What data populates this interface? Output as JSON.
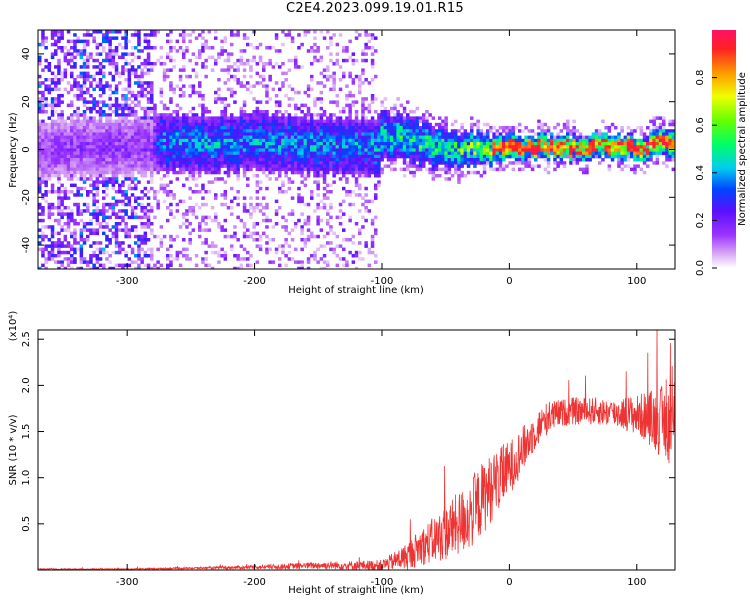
{
  "title": "C2E4.2023.099.19.01.R15",
  "chart_data": [
    {
      "type": "heatmap",
      "xlabel": "Height of straight line (km)",
      "ylabel": "Frequency (Hz)",
      "xlim": [
        -370,
        130
      ],
      "ylim": [
        -50,
        50
      ],
      "x_ticks": [
        -300,
        -200,
        -100,
        0,
        100
      ],
      "y_ticks": [
        -40,
        -20,
        0,
        20,
        40
      ],
      "colorbar": {
        "label": "Normalized spectral amplitude",
        "range": [
          0,
          1
        ],
        "ticks": [
          "0.0",
          "0.2",
          "0.4",
          "0.6",
          "0.8"
        ],
        "tick_values": [
          0.0,
          0.2,
          0.4,
          0.6,
          0.8
        ]
      },
      "band_center_profile": [
        {
          "x": -370,
          "center": 0,
          "halfwidth": 48,
          "peak": 0.18
        },
        {
          "x": -280,
          "center": 2,
          "halfwidth": 48,
          "peak": 0.2
        },
        {
          "x": -275,
          "center": 3,
          "halfwidth": 14,
          "peak": 0.45
        },
        {
          "x": -200,
          "center": 3,
          "halfwidth": 14,
          "peak": 0.45
        },
        {
          "x": -105,
          "center": 1,
          "halfwidth": 14,
          "peak": 0.45
        },
        {
          "x": -100,
          "center": 7,
          "halfwidth": 10,
          "peak": 0.55
        },
        {
          "x": -50,
          "center": 0,
          "halfwidth": 8,
          "peak": 0.6
        },
        {
          "x": 0,
          "center": 1,
          "halfwidth": 5,
          "peak": 0.85
        },
        {
          "x": 100,
          "center": 1,
          "halfwidth": 5,
          "peak": 0.9
        },
        {
          "x": 130,
          "center": 4,
          "halfwidth": 6,
          "peak": 0.8
        }
      ]
    },
    {
      "type": "line",
      "xlabel": "Height of straight line (km)",
      "ylabel": "SNR (10 * v/v)",
      "y_multiplier": "(x10⁴)",
      "xlim": [
        -370,
        130
      ],
      "ylim": [
        0,
        2.6
      ],
      "x_ticks": [
        -300,
        -200,
        -100,
        0,
        100
      ],
      "y_ticks": [
        0.5,
        1.0,
        1.5,
        2.0,
        2.5
      ],
      "y_tick_labels": [
        "0.5",
        "1.0",
        "1.5",
        "2.0",
        "2.5"
      ],
      "series": [
        {
          "color": "#ee3333",
          "x": [
            -370,
            -300,
            -250,
            -200,
            -150,
            -120,
            -100,
            -90,
            -80,
            -70,
            -60,
            -50,
            -40,
            -30,
            -20,
            -10,
            0,
            10,
            20,
            30,
            40,
            50,
            60,
            70,
            80,
            90,
            100,
            110,
            120,
            130
          ],
          "y": [
            0.01,
            0.01,
            0.02,
            0.03,
            0.05,
            0.05,
            0.05,
            0.1,
            0.15,
            0.25,
            0.32,
            0.4,
            0.5,
            0.6,
            0.8,
            0.95,
            1.1,
            1.3,
            1.5,
            1.65,
            1.7,
            1.72,
            1.72,
            1.72,
            1.7,
            1.7,
            1.68,
            1.65,
            1.6,
            1.55
          ],
          "noise": [
            0.005,
            0.005,
            0.01,
            0.02,
            0.04,
            0.05,
            0.06,
            0.1,
            0.15,
            0.2,
            0.25,
            0.3,
            0.35,
            0.38,
            0.4,
            0.35,
            0.3,
            0.25,
            0.2,
            0.18,
            0.15,
            0.15,
            0.15,
            0.15,
            0.15,
            0.18,
            0.22,
            0.3,
            0.4,
            0.45
          ]
        }
      ]
    }
  ]
}
